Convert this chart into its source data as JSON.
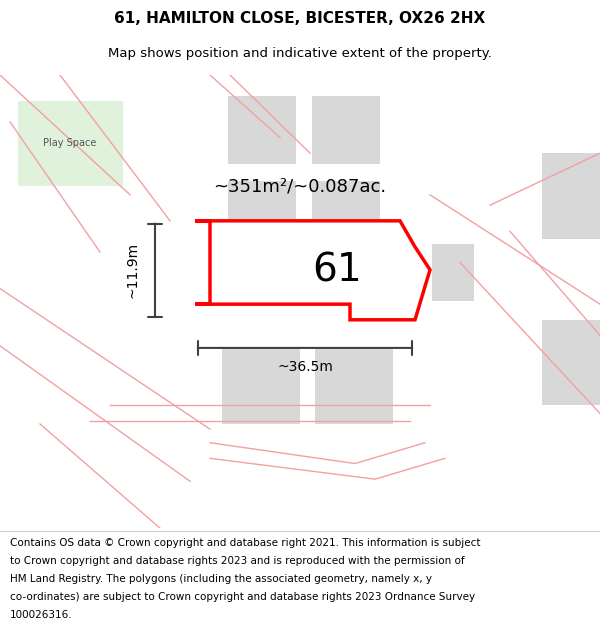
{
  "title": "61, HAMILTON CLOSE, BICESTER, OX26 2HX",
  "subtitle": "Map shows position and indicative extent of the property.",
  "area_text": "~351m²/~0.087ac.",
  "width_label": "~36.5m",
  "height_label": "~11.9m",
  "number_label": "61",
  "footer_lines": [
    "Contains OS data © Crown copyright and database right 2021. This information is subject",
    "to Crown copyright and database rights 2023 and is reproduced with the permission of",
    "HM Land Registry. The polygons (including the associated geometry, namely x, y",
    "co-ordinates) are subject to Crown copyright and database rights 2023 Ordnance Survey",
    "100026316."
  ],
  "bg_color": "#ffffff",
  "map_bg": "#ffffff",
  "plot_color": "#ff0000",
  "gray_block_color": "#d8d8d8",
  "road_line_color": "#f4a0a0",
  "dim_line_color": "#404040",
  "green_fill": "#c8e6c0",
  "title_fontsize": 11,
  "subtitle_fontsize": 9.5,
  "footer_fontsize": 7.5
}
